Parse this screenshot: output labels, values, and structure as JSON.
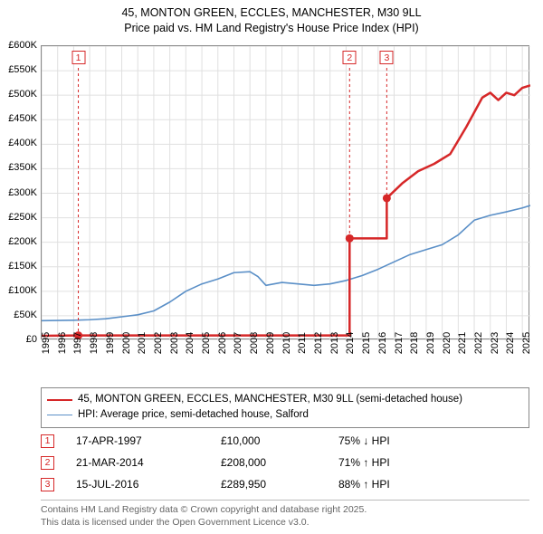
{
  "title": {
    "line1": "45, MONTON GREEN, ECCLES, MANCHESTER, M30 9LL",
    "line2": "Price paid vs. HM Land Registry's House Price Index (HPI)"
  },
  "chart": {
    "background_color": "#ffffff",
    "grid_color": "#e0e0e0",
    "axis_color": "#888888",
    "x_min_year": 1995,
    "x_max_year": 2025,
    "y_min": 0,
    "y_max": 600000,
    "y_tick_step": 50000,
    "y_tick_labels": [
      "£0",
      "£50K",
      "£100K",
      "£150K",
      "£200K",
      "£250K",
      "£300K",
      "£350K",
      "£400K",
      "£450K",
      "£500K",
      "£550K",
      "£600K"
    ],
    "x_tick_labels": [
      "1995",
      "1996",
      "1997",
      "1998",
      "1999",
      "2000",
      "2001",
      "2002",
      "2003",
      "2004",
      "2005",
      "2006",
      "2007",
      "2008",
      "2009",
      "2010",
      "2011",
      "2012",
      "2013",
      "2014",
      "2015",
      "2016",
      "2017",
      "2018",
      "2019",
      "2020",
      "2021",
      "2022",
      "2023",
      "2024",
      "2025"
    ],
    "series": [
      {
        "id": "price-paid",
        "color": "#d62728",
        "width": 2.5,
        "legend_label": "45, MONTON GREEN, ECCLES, MANCHESTER, M30 9LL (semi-detached house)",
        "points": [
          {
            "x": 1997.29,
            "y": 10000
          },
          {
            "x": 2014.22,
            "y": 208000
          },
          {
            "x": 2016.54,
            "y": 289950
          }
        ],
        "extrapolate_after": [
          {
            "x": 2016.54,
            "y": 289950
          },
          {
            "x": 2017.5,
            "y": 320000
          },
          {
            "x": 2018.5,
            "y": 345000
          },
          {
            "x": 2019.5,
            "y": 360000
          },
          {
            "x": 2020.5,
            "y": 380000
          },
          {
            "x": 2021.5,
            "y": 435000
          },
          {
            "x": 2022.0,
            "y": 465000
          },
          {
            "x": 2022.5,
            "y": 495000
          },
          {
            "x": 2023.0,
            "y": 505000
          },
          {
            "x": 2023.5,
            "y": 490000
          },
          {
            "x": 2024.0,
            "y": 505000
          },
          {
            "x": 2024.5,
            "y": 500000
          },
          {
            "x": 2025.0,
            "y": 515000
          },
          {
            "x": 2025.5,
            "y": 520000
          }
        ],
        "extrapolate_before": [
          {
            "x": 1995.0,
            "y": 9200
          },
          {
            "x": 1997.29,
            "y": 10000
          }
        ],
        "marker_radius": 4.5
      },
      {
        "id": "hpi",
        "color": "#5a8fc7",
        "width": 1.6,
        "legend_label": "HPI: Average price, semi-detached house, Salford",
        "points": [
          {
            "x": 1995.0,
            "y": 40000
          },
          {
            "x": 1996.0,
            "y": 40500
          },
          {
            "x": 1997.0,
            "y": 41000
          },
          {
            "x": 1998.0,
            "y": 42000
          },
          {
            "x": 1999.0,
            "y": 44000
          },
          {
            "x": 2000.0,
            "y": 48000
          },
          {
            "x": 2001.0,
            "y": 52000
          },
          {
            "x": 2002.0,
            "y": 60000
          },
          {
            "x": 2003.0,
            "y": 78000
          },
          {
            "x": 2004.0,
            "y": 100000
          },
          {
            "x": 2005.0,
            "y": 115000
          },
          {
            "x": 2006.0,
            "y": 125000
          },
          {
            "x": 2007.0,
            "y": 138000
          },
          {
            "x": 2008.0,
            "y": 140000
          },
          {
            "x": 2008.5,
            "y": 130000
          },
          {
            "x": 2009.0,
            "y": 112000
          },
          {
            "x": 2010.0,
            "y": 118000
          },
          {
            "x": 2011.0,
            "y": 115000
          },
          {
            "x": 2012.0,
            "y": 112000
          },
          {
            "x": 2013.0,
            "y": 115000
          },
          {
            "x": 2014.0,
            "y": 122000
          },
          {
            "x": 2015.0,
            "y": 132000
          },
          {
            "x": 2016.0,
            "y": 145000
          },
          {
            "x": 2017.0,
            "y": 160000
          },
          {
            "x": 2018.0,
            "y": 175000
          },
          {
            "x": 2019.0,
            "y": 185000
          },
          {
            "x": 2020.0,
            "y": 195000
          },
          {
            "x": 2021.0,
            "y": 215000
          },
          {
            "x": 2022.0,
            "y": 245000
          },
          {
            "x": 2023.0,
            "y": 255000
          },
          {
            "x": 2024.0,
            "y": 262000
          },
          {
            "x": 2025.0,
            "y": 270000
          },
          {
            "x": 2025.5,
            "y": 275000
          }
        ]
      }
    ],
    "flags": [
      {
        "n": "1",
        "x": 1997.29,
        "color": "#d62728"
      },
      {
        "n": "2",
        "x": 2014.22,
        "color": "#d62728"
      },
      {
        "n": "3",
        "x": 2016.54,
        "color": "#d62728"
      }
    ],
    "flag_gap_mask_y": 550000
  },
  "events": [
    {
      "n": "1",
      "date": "17-APR-1997",
      "price": "£10,000",
      "delta": "75% ↓ HPI",
      "marker_color": "#d62728"
    },
    {
      "n": "2",
      "date": "21-MAR-2014",
      "price": "£208,000",
      "delta": "71% ↑ HPI",
      "marker_color": "#d62728"
    },
    {
      "n": "3",
      "date": "15-JUL-2016",
      "price": "£289,950",
      "delta": "88% ↑ HPI",
      "marker_color": "#d62728"
    }
  ],
  "footnote": {
    "line1": "Contains HM Land Registry data © Crown copyright and database right 2025.",
    "line2": "This data is licensed under the Open Government Licence v3.0."
  }
}
